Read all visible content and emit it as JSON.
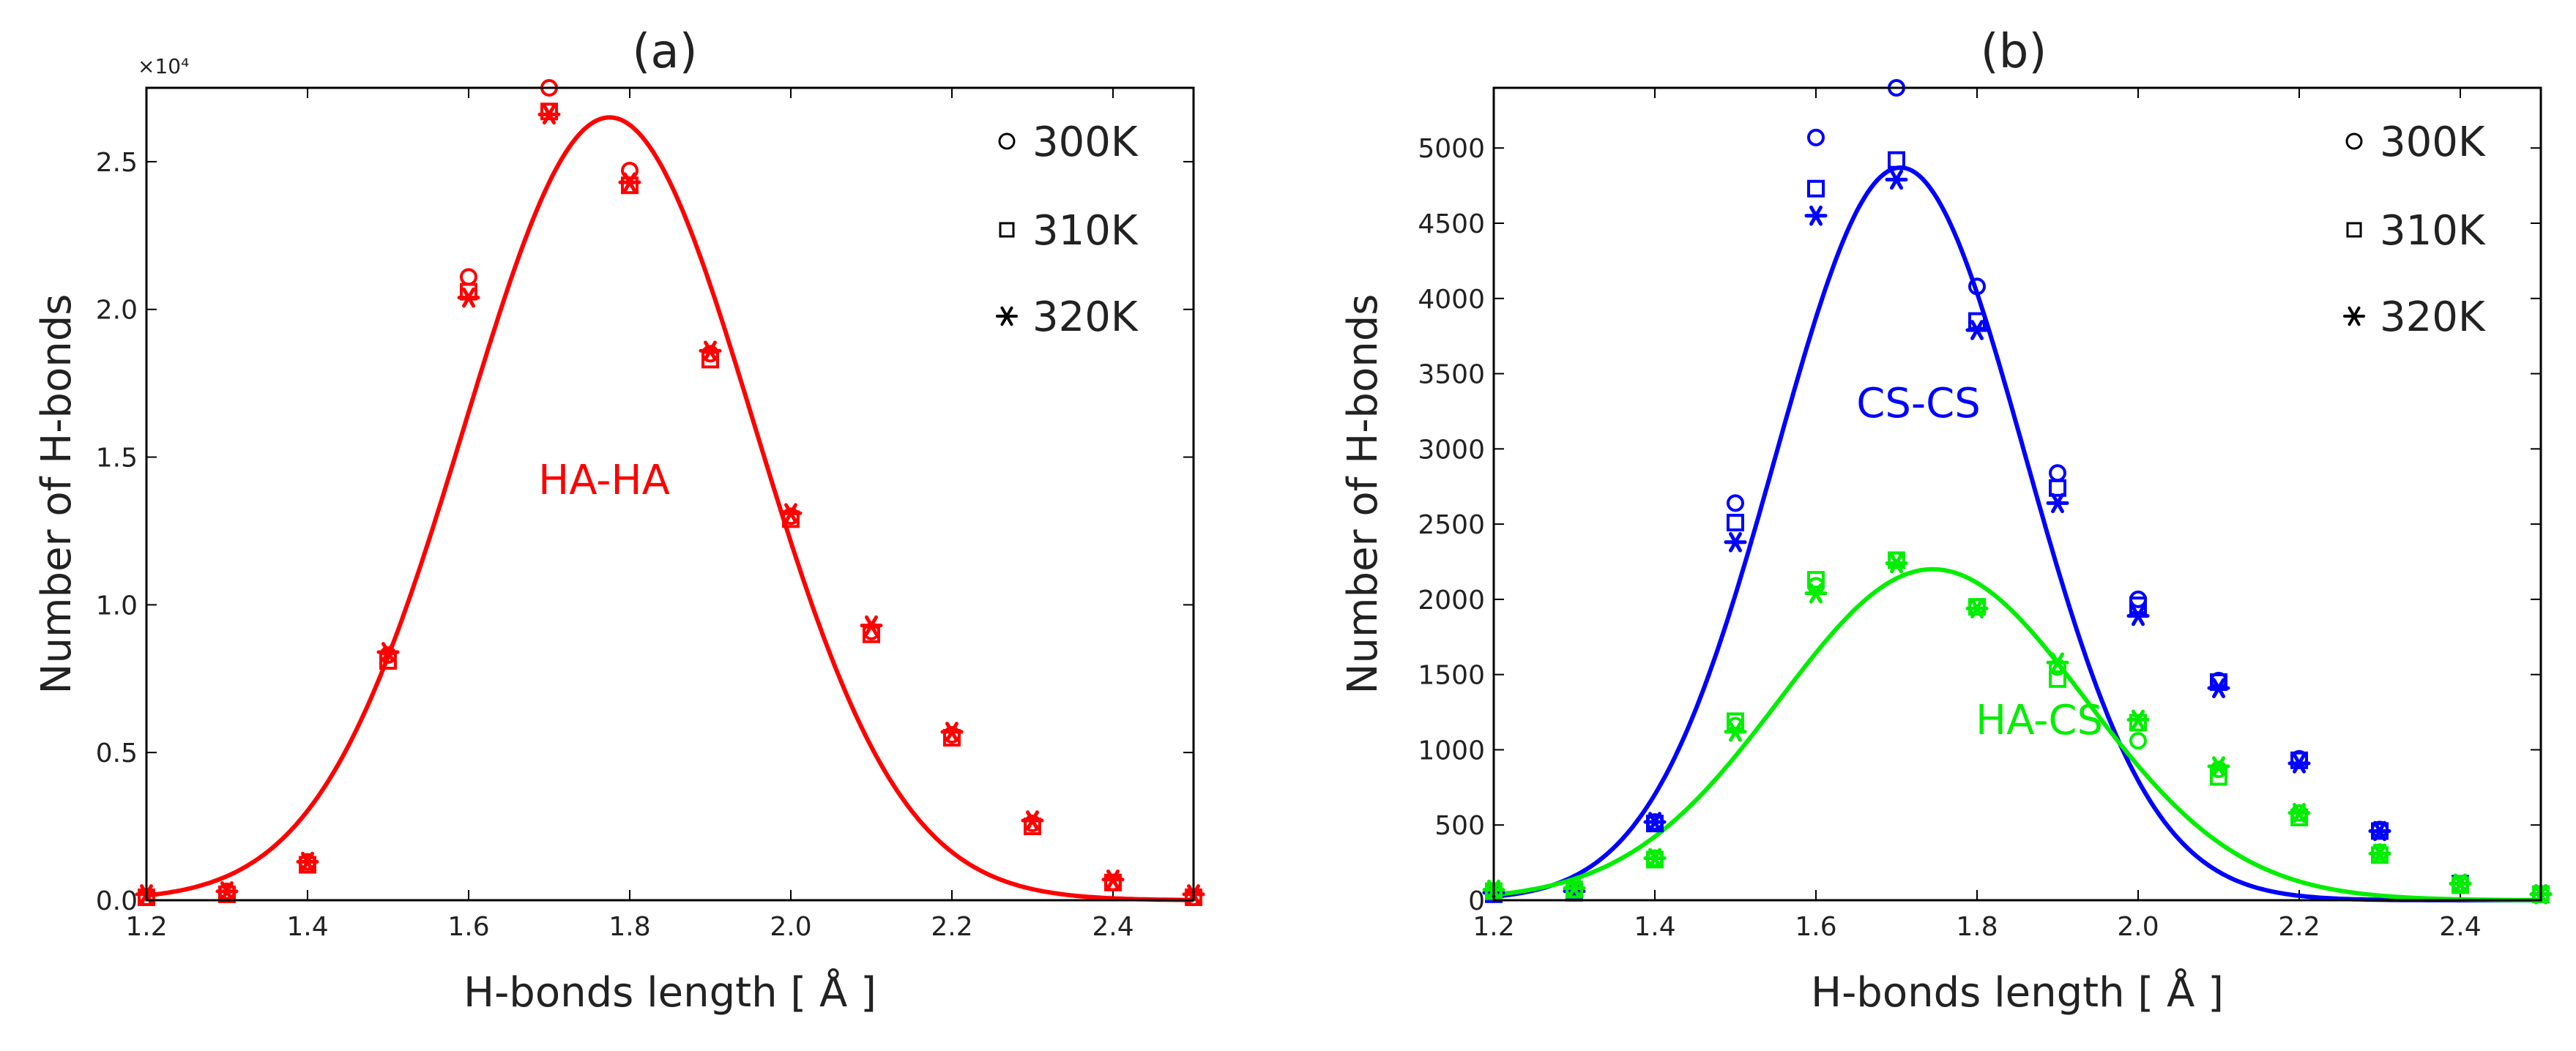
{
  "chart_data": [
    {
      "panel": "a",
      "type": "scatter",
      "title": "(a)",
      "xlabel": "H-bonds length [ Å ]",
      "ylabel": "Number of H-bonds",
      "y_multiplier": "×10⁴",
      "xlim": [
        1.2,
        2.5
      ],
      "ylim": [
        0,
        2.75
      ],
      "x_ticks": [
        "1.2",
        "1.4",
        "1.6",
        "1.8",
        "2.0",
        "2.2",
        "2.4"
      ],
      "y_ticks": [
        "0.0",
        "0.5",
        "1.0",
        "1.5",
        "2.0",
        "2.5"
      ],
      "legend": [
        "300K",
        "310K",
        "320K"
      ],
      "legend_position": "top-right",
      "x": [
        1.2,
        1.3,
        1.4,
        1.5,
        1.6,
        1.7,
        1.8,
        1.9,
        2.0,
        2.1,
        2.2,
        2.3,
        2.4,
        2.5
      ],
      "series": [
        {
          "name": "300K",
          "marker": "circle",
          "color": "#ff0000",
          "values": [
            0.01,
            0.03,
            0.13,
            0.83,
            2.11,
            2.75,
            2.47,
            1.85,
            1.3,
            0.91,
            0.56,
            0.26,
            0.06,
            0.01
          ]
        },
        {
          "name": "310K",
          "marker": "square",
          "color": "#ff0000",
          "values": [
            0.01,
            0.02,
            0.12,
            0.81,
            2.06,
            2.67,
            2.42,
            1.83,
            1.29,
            0.9,
            0.55,
            0.25,
            0.06,
            0.01
          ]
        },
        {
          "name": "320K",
          "marker": "star",
          "color": "#ff0000",
          "values": [
            0.02,
            0.03,
            0.13,
            0.84,
            2.04,
            2.66,
            2.43,
            1.86,
            1.31,
            0.93,
            0.57,
            0.27,
            0.07,
            0.02
          ]
        }
      ],
      "fits": [
        {
          "name": "HA-HA",
          "color": "#ff0000",
          "amplitude": 2.65,
          "center": 1.775,
          "sigma": 0.18
        }
      ],
      "annotations": [
        {
          "text": "HA-HA",
          "x": 1.83,
          "y": 1.42,
          "color": "#ff0000"
        }
      ]
    },
    {
      "panel": "b",
      "type": "scatter",
      "title": "(b)",
      "xlabel": "H-bonds length [ Å ]",
      "ylabel": "Number of H-bonds",
      "xlim": [
        1.2,
        2.5
      ],
      "ylim": [
        0,
        5400
      ],
      "x_ticks": [
        "1.2",
        "1.4",
        "1.6",
        "1.8",
        "2.0",
        "2.2",
        "2.4"
      ],
      "y_ticks": [
        "0",
        "500",
        "1000",
        "1500",
        "2000",
        "2500",
        "3000",
        "3500",
        "4000",
        "4500",
        "5000"
      ],
      "legend": [
        "300K",
        "310K",
        "320K"
      ],
      "legend_position": "top-right",
      "x": [
        1.2,
        1.3,
        1.4,
        1.5,
        1.6,
        1.7,
        1.8,
        1.9,
        2.0,
        2.1,
        2.2,
        2.3,
        2.4,
        2.5
      ],
      "series": [
        {
          "name": "300K CS-CS",
          "marker": "circle",
          "color": "#0000ff",
          "values": [
            40,
            50,
            520,
            2640,
            5070,
            5400,
            4080,
            2840,
            2000,
            1460,
            940,
            470,
            110,
            40
          ]
        },
        {
          "name": "310K CS-CS",
          "marker": "square",
          "color": "#0000ff",
          "values": [
            40,
            50,
            510,
            2510,
            4730,
            4920,
            3850,
            2740,
            1960,
            1450,
            930,
            460,
            110,
            40
          ]
        },
        {
          "name": "320K CS-CS",
          "marker": "star",
          "color": "#0000ff",
          "values": [
            50,
            60,
            520,
            2380,
            4550,
            4790,
            3790,
            2640,
            1890,
            1410,
            910,
            460,
            110,
            40
          ]
        },
        {
          "name": "300K HA-CS",
          "marker": "circle",
          "color": "#00ee00",
          "values": [
            60,
            70,
            280,
            1160,
            2090,
            2260,
            1950,
            1550,
            1060,
            870,
            580,
            320,
            110,
            40
          ]
        },
        {
          "name": "310K HA-CS",
          "marker": "square",
          "color": "#00ee00",
          "values": [
            60,
            70,
            270,
            1190,
            2130,
            2260,
            1950,
            1470,
            1180,
            820,
            550,
            300,
            100,
            40
          ]
        },
        {
          "name": "320K HA-CS",
          "marker": "star",
          "color": "#00ee00",
          "values": [
            70,
            80,
            280,
            1120,
            2040,
            2240,
            1940,
            1580,
            1200,
            890,
            580,
            310,
            110,
            40
          ]
        }
      ],
      "fits": [
        {
          "name": "CS-CS",
          "color": "#0000ff",
          "amplitude": 4870,
          "center": 1.705,
          "sigma": 0.155
        },
        {
          "name": "HA-CS",
          "color": "#00ee00",
          "amplitude": 2200,
          "center": 1.745,
          "sigma": 0.19
        }
      ],
      "annotations": [
        {
          "text": "CS-CS",
          "x": 1.74,
          "y": 3170,
          "color": "#0000ff"
        },
        {
          "text": "HA-CS",
          "x": 1.86,
          "y": 1180,
          "color": "#00ee00"
        }
      ]
    }
  ]
}
